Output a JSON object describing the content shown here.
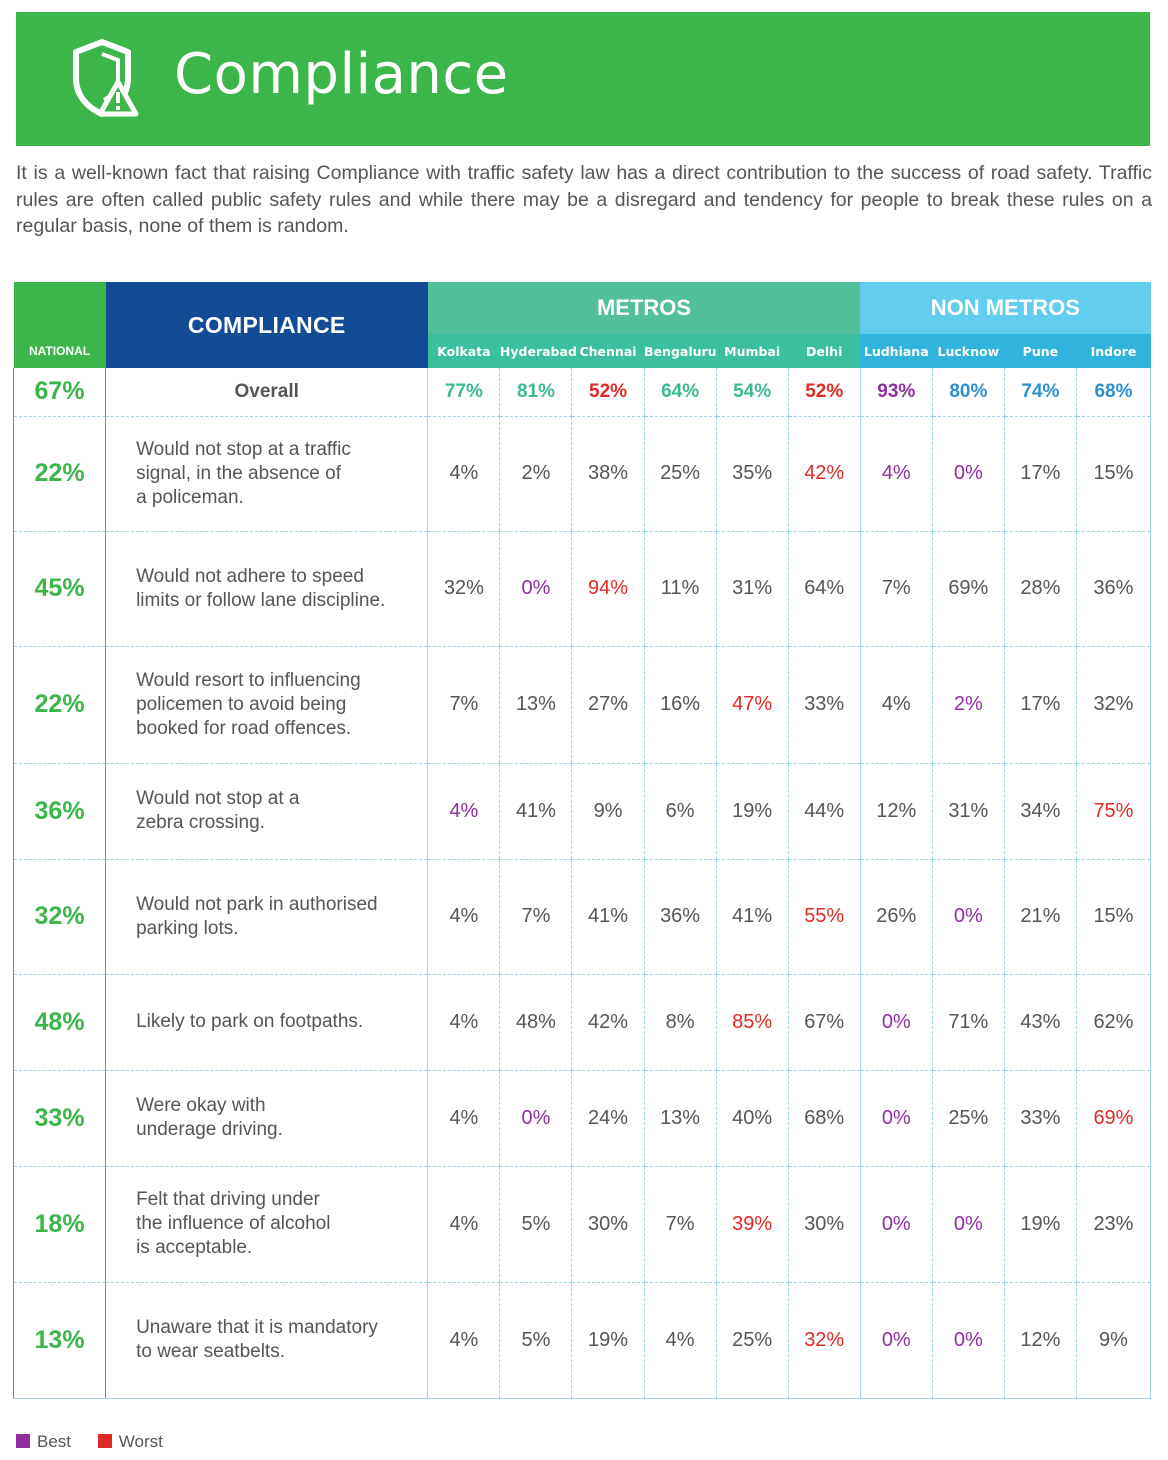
{
  "header": {
    "title": "Compliance"
  },
  "intro": "It is a well-known fact that raising Compliance with traffic safety law has a direct contribution to the success of road safety. Traffic rules are often called public safety rules and while there may be a disregard and tendency for people to break these rules on a regular basis, none of them is random.",
  "colors": {
    "green": "#3cb54a",
    "navy": "#134b95",
    "metros": "#52c19b",
    "nonmetros": "#62cdee",
    "best": "#8e2fa0",
    "worst": "#e02a24",
    "overall_metro": "#3dba8d",
    "overall_nonmetro": "#2f8fd0"
  },
  "table": {
    "national_label": "NATIONAL",
    "compliance_label": "COMPLIANCE",
    "metros_label": "METROS",
    "nonmetros_label": "NON METROS",
    "metro_cities": [
      "Kolkata",
      "Hyderabad",
      "Chennai",
      "Bengaluru",
      "Mumbai",
      "Delhi"
    ],
    "nonmetro_cities": [
      "Ludhiana",
      "Lucknow",
      "Pune",
      "Indore"
    ]
  },
  "chart_data": {
    "type": "table",
    "columns": [
      "National",
      "Compliance",
      "Kolkata",
      "Hyderabad",
      "Chennai",
      "Bengaluru",
      "Mumbai",
      "Delhi",
      "Ludhiana",
      "Lucknow",
      "Pune",
      "Indore"
    ],
    "rows": [
      {
        "national": "67%",
        "label": "Overall",
        "values": [
          "77%",
          "81%",
          "52%",
          "64%",
          "54%",
          "52%",
          "93%",
          "80%",
          "74%",
          "68%"
        ],
        "marks": [
          "om",
          "om",
          "worst",
          "om",
          "om",
          "worst",
          "best",
          "on",
          "on",
          "on"
        ]
      },
      {
        "national": "22%",
        "label": "Would not stop at a traffic signal, in the absence of a policeman.",
        "lines": [
          "Would not stop at a traffic",
          "signal, in the absence of",
          "a policeman."
        ],
        "values": [
          "4%",
          "2%",
          "38%",
          "25%",
          "35%",
          "42%",
          "4%",
          "0%",
          "17%",
          "15%"
        ],
        "marks": [
          "",
          "",
          "",
          "",
          "",
          "worst",
          "best",
          "best",
          "",
          ""
        ]
      },
      {
        "national": "45%",
        "label": "Would not adhere to speed limits or follow lane discipline.",
        "lines": [
          "Would not adhere to speed",
          "limits or follow lane discipline."
        ],
        "values": [
          "32%",
          "0%",
          "94%",
          "11%",
          "31%",
          "64%",
          "7%",
          "69%",
          "28%",
          "36%"
        ],
        "marks": [
          "",
          "best",
          "worst",
          "",
          "",
          "",
          "",
          "",
          "",
          ""
        ]
      },
      {
        "national": "22%",
        "label": "Would resort to influencing policemen to avoid being booked for road offences.",
        "lines": [
          "Would resort to influencing",
          "policemen to avoid being",
          "booked for road offences."
        ],
        "values": [
          "7%",
          "13%",
          "27%",
          "16%",
          "47%",
          "33%",
          "4%",
          "2%",
          "17%",
          "32%"
        ],
        "marks": [
          "",
          "",
          "",
          "",
          "worst",
          "",
          "",
          "best",
          "",
          ""
        ]
      },
      {
        "national": "36%",
        "label": "Would not stop at a zebra crossing.",
        "lines": [
          "Would not stop at a",
          "zebra crossing."
        ],
        "values": [
          "4%",
          "41%",
          "9%",
          "6%",
          "19%",
          "44%",
          "12%",
          "31%",
          "34%",
          "75%"
        ],
        "marks": [
          "best",
          "",
          "",
          "",
          "",
          "",
          "",
          "",
          "",
          "worst"
        ]
      },
      {
        "national": "32%",
        "label": "Would not park in authorised parking lots.",
        "lines": [
          "Would not park in authorised",
          "parking lots."
        ],
        "values": [
          "4%",
          "7%",
          "41%",
          "36%",
          "41%",
          "55%",
          "26%",
          "0%",
          "21%",
          "15%"
        ],
        "marks": [
          "",
          "",
          "",
          "",
          "",
          "worst",
          "",
          "best",
          "",
          ""
        ]
      },
      {
        "national": "48%",
        "label": "Likely to park on footpaths.",
        "lines": [
          "Likely to park on footpaths."
        ],
        "values": [
          "4%",
          "48%",
          "42%",
          "8%",
          "85%",
          "67%",
          "0%",
          "71%",
          "43%",
          "62%"
        ],
        "marks": [
          "",
          "",
          "",
          "",
          "worst",
          "",
          "best",
          "",
          "",
          ""
        ]
      },
      {
        "national": "33%",
        "label": "Were okay with underage driving.",
        "lines": [
          "Were okay with",
          "underage driving."
        ],
        "values": [
          "4%",
          "0%",
          "24%",
          "13%",
          "40%",
          "68%",
          "0%",
          "25%",
          "33%",
          "69%"
        ],
        "marks": [
          "",
          "best",
          "",
          "",
          "",
          "",
          "best",
          "",
          "",
          "worst"
        ]
      },
      {
        "national": "18%",
        "label": "Felt that driving under the influence of alcohol is acceptable.",
        "lines": [
          "Felt that driving under",
          "the influence of alcohol",
          "is acceptable."
        ],
        "values": [
          "4%",
          "5%",
          "30%",
          "7%",
          "39%",
          "30%",
          "0%",
          "0%",
          "19%",
          "23%"
        ],
        "marks": [
          "",
          "",
          "",
          "",
          "worst",
          "",
          "best",
          "best",
          "",
          ""
        ]
      },
      {
        "national": "13%",
        "label": "Unaware that it is mandatory to wear seatbelts.",
        "lines": [
          "Unaware that it is mandatory",
          "to wear seatbelts."
        ],
        "values": [
          "4%",
          "5%",
          "19%",
          "4%",
          "25%",
          "32%",
          "0%",
          "0%",
          "12%",
          "9%"
        ],
        "marks": [
          "",
          "",
          "",
          "",
          "",
          "worst",
          "best",
          "best",
          "",
          ""
        ]
      }
    ]
  },
  "legend": {
    "best": "Best",
    "worst": "Worst"
  }
}
